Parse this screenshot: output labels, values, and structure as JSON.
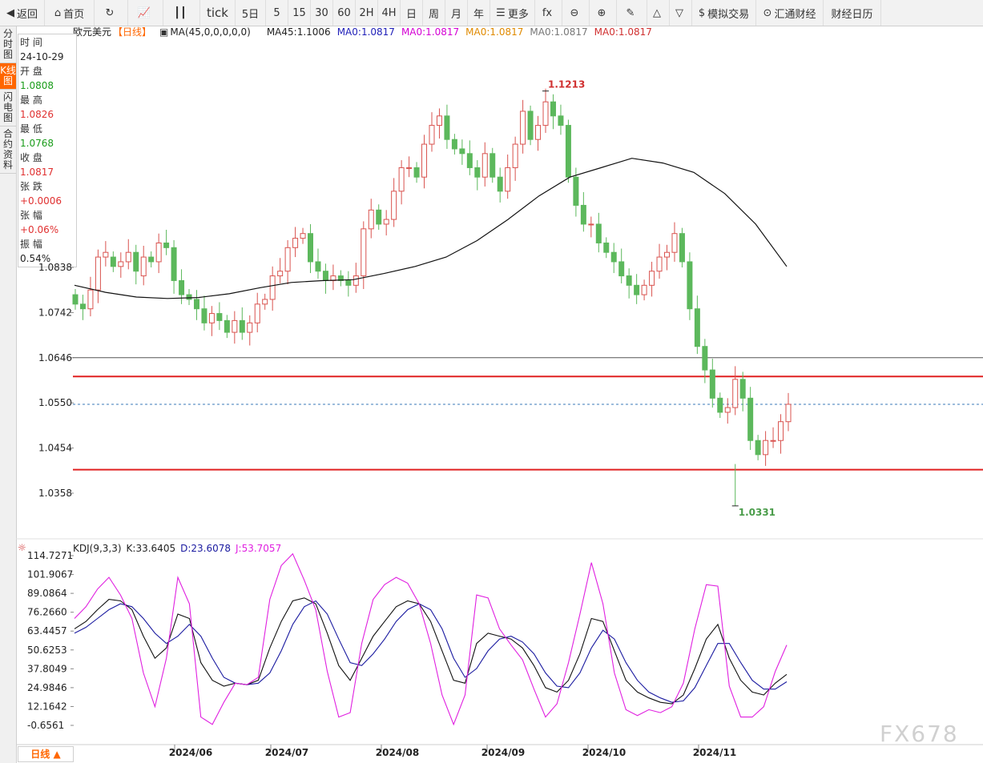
{
  "toolbar": [
    {
      "name": "back-button",
      "icon": "◀",
      "label": "返回"
    },
    {
      "name": "home-button",
      "icon": "⌂",
      "label": "首页"
    },
    {
      "name": "refresh-button",
      "icon": "↻",
      "label": ""
    },
    {
      "name": "chart-type-button",
      "icon": "📈",
      "label": ""
    },
    {
      "name": "candle-type-button",
      "icon": "┃┃",
      "label": ""
    },
    {
      "name": "period-tick",
      "icon": "",
      "label": "tick"
    },
    {
      "name": "period-5d",
      "icon": "",
      "label": "5日"
    },
    {
      "name": "period-5",
      "icon": "",
      "label": "5"
    },
    {
      "name": "period-15",
      "icon": "",
      "label": "15"
    },
    {
      "name": "period-30",
      "icon": "",
      "label": "30"
    },
    {
      "name": "period-60",
      "icon": "",
      "label": "60"
    },
    {
      "name": "period-2h",
      "icon": "",
      "label": "2H"
    },
    {
      "name": "period-4h",
      "icon": "",
      "label": "4H"
    },
    {
      "name": "period-day",
      "icon": "",
      "label": "日"
    },
    {
      "name": "period-week",
      "icon": "",
      "label": "周"
    },
    {
      "name": "period-month",
      "icon": "",
      "label": "月"
    },
    {
      "name": "period-year",
      "icon": "",
      "label": "年"
    },
    {
      "name": "more-button",
      "icon": "☰",
      "label": "更多"
    },
    {
      "name": "formula-button",
      "icon": "fx",
      "label": ""
    },
    {
      "name": "zoom-out-button",
      "icon": "⊖",
      "label": ""
    },
    {
      "name": "zoom-in-button",
      "icon": "⊕",
      "label": ""
    },
    {
      "name": "draw-button",
      "icon": "✎",
      "label": ""
    },
    {
      "name": "up-button",
      "icon": "△",
      "label": ""
    },
    {
      "name": "down-button",
      "icon": "▽",
      "label": ""
    },
    {
      "name": "sim-trade-button",
      "icon": "$",
      "label": "模拟交易"
    },
    {
      "name": "huitong-button",
      "icon": "⊙",
      "label": "汇通财经"
    },
    {
      "name": "calendar-button",
      "icon": "",
      "label": "财经日历"
    }
  ],
  "sidebar": [
    "分时图",
    "K线图",
    "闪电图",
    "合约资料"
  ],
  "info_panel": [
    {
      "label": "时 间",
      "value": "24-10-29",
      "color": "black"
    },
    {
      "label": "开 盘",
      "value": "1.0808",
      "color": "green"
    },
    {
      "label": "最 高",
      "value": "1.0826",
      "color": "red"
    },
    {
      "label": "最 低",
      "value": "1.0768",
      "color": "green"
    },
    {
      "label": "收 盘",
      "value": "1.0817",
      "color": "red"
    },
    {
      "label": "张 跌",
      "value": "+0.0006",
      "color": "red"
    },
    {
      "label": "张 幅",
      "value": "+0.06%",
      "color": "red"
    },
    {
      "label": "振 幅",
      "value": "0.54%",
      "color": "black"
    }
  ],
  "main_header": {
    "symbol": "欧元美元",
    "period": "【日线】",
    "ma_title": "MA(45,0,0,0,0,0)",
    "ma_values": [
      {
        "text": "MA45:1.1006",
        "color": "#222222"
      },
      {
        "text": "MA0:1.0817",
        "color": "#1f1fb8"
      },
      {
        "text": "MA0:1.0817",
        "color": "#d400d4"
      },
      {
        "text": "MA0:1.0817",
        "color": "#e08a00"
      },
      {
        "text": "MA0:1.0817",
        "color": "#777777"
      },
      {
        "text": "MA0:1.0817",
        "color": "#d03030"
      }
    ]
  },
  "kdj_header": {
    "title": "KDJ(9,3,3)",
    "k": "K:33.6405",
    "d": "D:23.6078",
    "j": "J:53.7057"
  },
  "period_footer": "日线 ▲",
  "watermark": "FX678",
  "colors": {
    "up": "#d9534f",
    "down": "#5cb85c",
    "k_line": "#111111",
    "d_line": "#1a1aa0",
    "j_line": "#e020e0",
    "ma45": "#111111",
    "support_line": "#e02020",
    "last_price_line": "#3a7ab8"
  },
  "chart_data": {
    "type": "candlestick",
    "title": "欧元美元【日线】",
    "price_axis": {
      "ticks": [
        "1.0838",
        "1.0742",
        "1.0646",
        "1.0550",
        "1.0454",
        "1.0358"
      ],
      "range": [
        1.03,
        1.125
      ]
    },
    "x_ticks": [
      "2024/06",
      "2024/07",
      "2024/08",
      "2024/09",
      "2024/10",
      "2024/11"
    ],
    "annotations": [
      {
        "text": "1.1213",
        "kind": "high"
      },
      {
        "text": "1.0331",
        "kind": "low"
      }
    ],
    "horizontal_lines": [
      1.0606,
      1.0408,
      1.0646,
      1.055
    ],
    "last_price": 1.0547,
    "ma45": [
      1.08,
      1.0785,
      1.0775,
      1.0772,
      1.0774,
      1.0782,
      1.0795,
      1.0806,
      1.081,
      1.0812,
      1.0825,
      1.084,
      1.086,
      1.0895,
      1.094,
      1.099,
      1.103,
      1.105,
      1.107,
      1.106,
      1.104,
      1.0995,
      1.093,
      1.084
    ],
    "candles_open": [
      1.078,
      1.076,
      1.075,
      1.079,
      1.086,
      1.086,
      1.084,
      1.085,
      1.087,
      1.082,
      1.086,
      1.085,
      1.089,
      1.088,
      1.081,
      1.078,
      1.077,
      1.075,
      1.072,
      1.074,
      1.0725,
      1.07,
      1.0725,
      1.07,
      1.072,
      1.076,
      1.077,
      1.082,
      1.083,
      1.088,
      1.09,
      1.091,
      1.085,
      1.083,
      1.081,
      1.082,
      1.081,
      1.08,
      1.082,
      1.092,
      1.096,
      1.093,
      1.094,
      1.1,
      1.105,
      1.105,
      1.103,
      1.11,
      1.114,
      1.116,
      1.111,
      1.109,
      1.108,
      1.105,
      1.103,
      1.108,
      1.103,
      1.1,
      1.105,
      1.11,
      1.117,
      1.111,
      1.114,
      1.119,
      1.116,
      1.114,
      1.103,
      1.097,
      1.093,
      1.093,
      1.089,
      1.087,
      1.085,
      1.082,
      1.08,
      1.078,
      1.08,
      1.083,
      1.086,
      1.087,
      1.091,
      1.085,
      1.075,
      1.067,
      1.062,
      1.056,
      1.053,
      1.054,
      1.06,
      1.056,
      1.047,
      1.044,
      1.047,
      1.047,
      1.051
    ],
    "candles_close": [
      1.076,
      1.075,
      1.079,
      1.086,
      1.087,
      1.084,
      1.085,
      1.087,
      1.083,
      1.086,
      1.085,
      1.089,
      1.088,
      1.081,
      1.078,
      1.077,
      1.075,
      1.072,
      1.074,
      1.0725,
      1.07,
      1.0725,
      1.07,
      1.072,
      1.076,
      1.077,
      1.082,
      1.083,
      1.088,
      1.09,
      1.091,
      1.085,
      1.083,
      1.081,
      1.082,
      1.081,
      1.08,
      1.082,
      1.092,
      1.096,
      1.093,
      1.094,
      1.1,
      1.105,
      1.105,
      1.103,
      1.11,
      1.114,
      1.116,
      1.111,
      1.109,
      1.108,
      1.105,
      1.103,
      1.108,
      1.103,
      1.1,
      1.105,
      1.11,
      1.117,
      1.111,
      1.114,
      1.119,
      1.116,
      1.114,
      1.103,
      1.097,
      1.093,
      1.093,
      1.089,
      1.087,
      1.085,
      1.082,
      1.08,
      1.078,
      1.08,
      1.083,
      1.086,
      1.087,
      1.091,
      1.085,
      1.075,
      1.067,
      1.062,
      1.056,
      1.053,
      1.054,
      1.06,
      1.056,
      1.047,
      1.044,
      1.047,
      1.047,
      1.051,
      1.0547
    ],
    "kdj": {
      "k": [
        65,
        70,
        78,
        85,
        84,
        78,
        60,
        45,
        52,
        75,
        72,
        42,
        30,
        26,
        28,
        27,
        30,
        52,
        70,
        84,
        86,
        82,
        62,
        40,
        30,
        45,
        60,
        70,
        80,
        84,
        82,
        70,
        50,
        30,
        28,
        55,
        62,
        60,
        58,
        52,
        40,
        25,
        22,
        30,
        48,
        72,
        70,
        50,
        30,
        22,
        18,
        15,
        14,
        20,
        38,
        58,
        68,
        45,
        30,
        22,
        20,
        28,
        34
      ],
      "d": [
        62,
        66,
        72,
        78,
        82,
        80,
        72,
        62,
        55,
        60,
        68,
        60,
        45,
        32,
        28,
        27,
        28,
        35,
        50,
        68,
        80,
        84,
        75,
        58,
        42,
        40,
        48,
        58,
        70,
        78,
        82,
        78,
        65,
        45,
        32,
        38,
        50,
        58,
        60,
        56,
        48,
        35,
        26,
        25,
        35,
        52,
        64,
        58,
        42,
        30,
        22,
        18,
        15,
        16,
        25,
        40,
        55,
        55,
        42,
        30,
        24,
        24,
        29
      ],
      "j": [
        72,
        80,
        92,
        100,
        88,
        72,
        35,
        12,
        45,
        100,
        82,
        5,
        0,
        15,
        28,
        27,
        32,
        85,
        108,
        116,
        98,
        78,
        36,
        5,
        8,
        55,
        85,
        95,
        100,
        96,
        82,
        55,
        20,
        0,
        20,
        88,
        86,
        65,
        54,
        44,
        24,
        5,
        14,
        42,
        75,
        110,
        82,
        35,
        10,
        6,
        10,
        8,
        12,
        28,
        65,
        95,
        94,
        26,
        5,
        5,
        12,
        36,
        54
      ]
    },
    "kdj_axis": [
      "114.7271",
      "101.9067",
      "89.0864",
      "76.2660",
      "63.4457",
      "50.6253",
      "37.8049",
      "24.9846",
      "12.1642",
      "-0.6561"
    ]
  }
}
